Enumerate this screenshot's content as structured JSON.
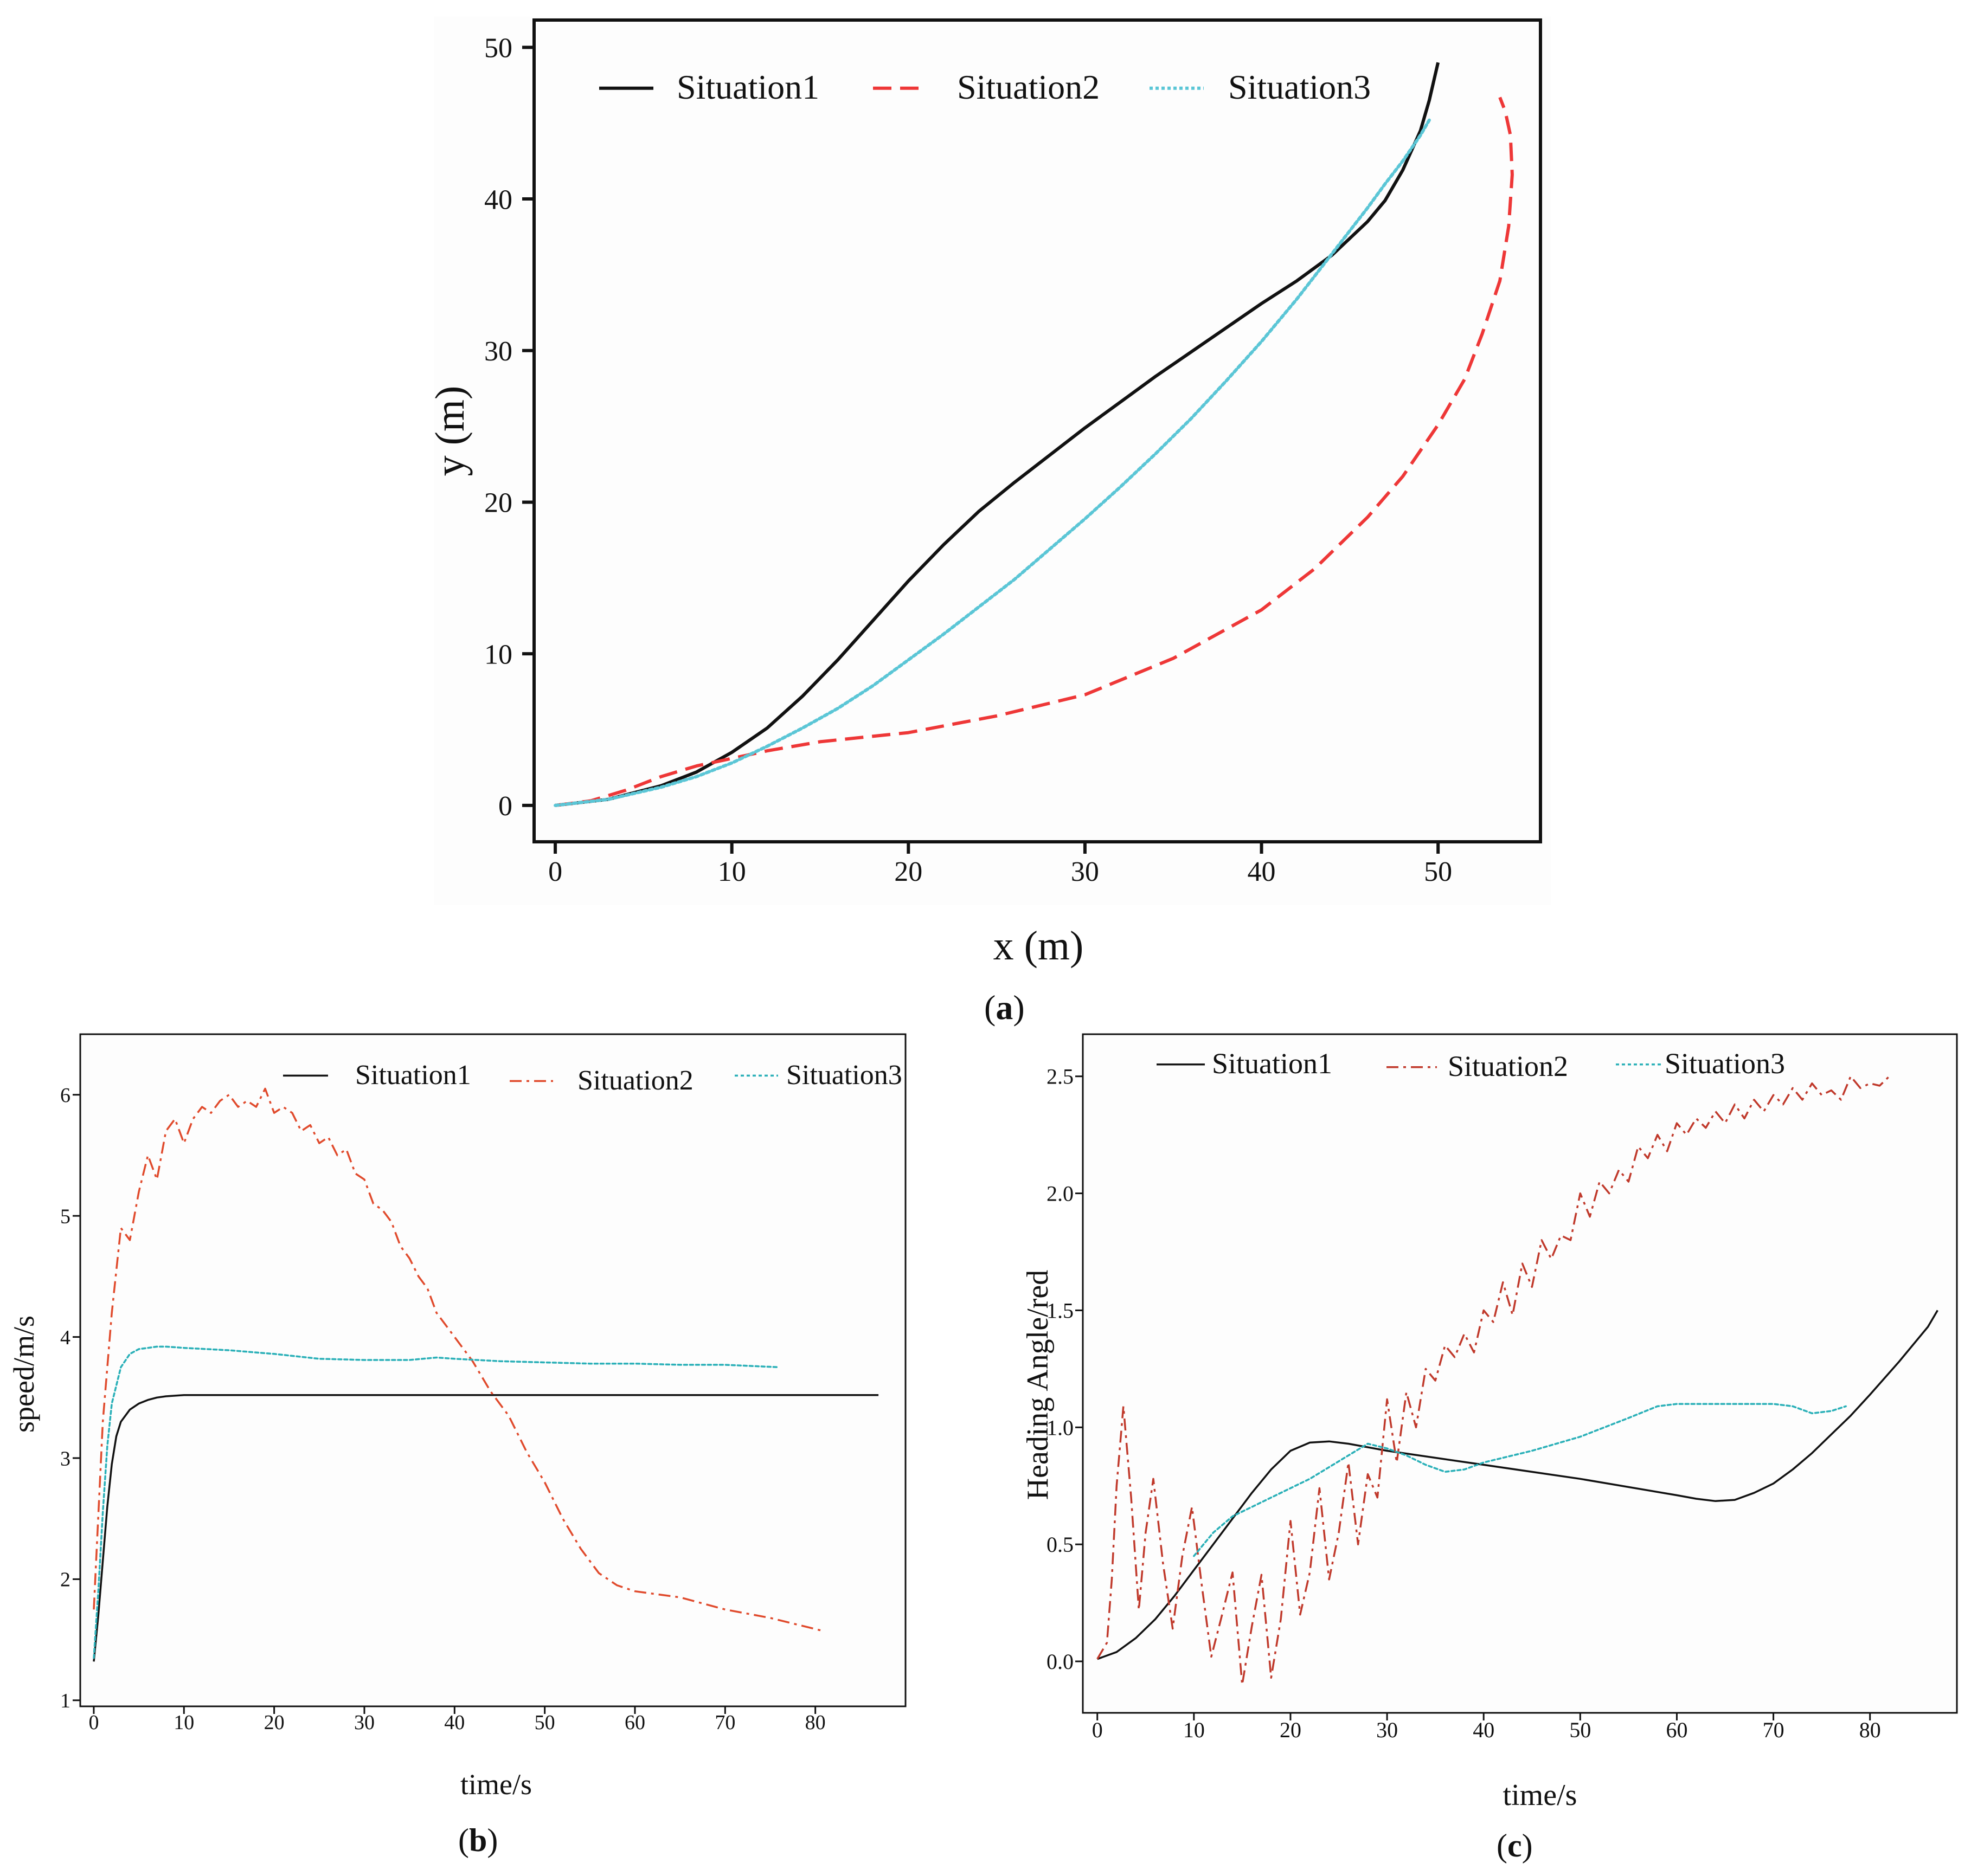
{
  "chart_data": [
    {
      "id": "a",
      "type": "line",
      "panel_label": "(a)",
      "label_letter": "a",
      "xlabel": "x (m)",
      "ylabel": "y (m)",
      "xlim": [
        -1.2,
        55.8
      ],
      "ylim": [
        -2.4,
        51.8
      ],
      "xticks": [
        0,
        10,
        20,
        30,
        40,
        50
      ],
      "yticks": [
        0,
        10,
        20,
        30,
        40,
        50
      ],
      "tick_labels_x": [
        "0",
        "10",
        "20",
        "30",
        "40",
        "50"
      ],
      "tick_labels_y": [
        "0",
        "10",
        "20",
        "30",
        "40",
        "50"
      ],
      "grid": false,
      "legend_position": "top",
      "series": [
        {
          "name": "Situation1",
          "color": "#111111",
          "style": "solid",
          "x": [
            0,
            3,
            6,
            8,
            10,
            12,
            14,
            16,
            18,
            20,
            22,
            24,
            26,
            28,
            30,
            32,
            34,
            36,
            38,
            40,
            42,
            44,
            46,
            47,
            48,
            49,
            49.5,
            50
          ],
          "y": [
            0,
            0.4,
            1.3,
            2.2,
            3.5,
            5.1,
            7.2,
            9.6,
            12.2,
            14.8,
            17.2,
            19.4,
            21.3,
            23.1,
            24.9,
            26.6,
            28.3,
            29.9,
            31.5,
            33.1,
            34.6,
            36.3,
            38.5,
            39.9,
            41.9,
            44.5,
            46.5,
            49.0
          ]
        },
        {
          "name": "Situation2",
          "color": "#ee3737",
          "style": "dashed",
          "x": [
            0,
            2,
            4,
            6,
            8,
            10,
            12,
            15,
            20,
            25,
            30,
            35,
            40,
            43,
            46,
            48,
            50,
            51.5,
            52.5,
            53.5,
            54.0,
            54.2,
            54.1,
            53.8,
            53.5
          ],
          "y": [
            0,
            0.3,
            1.0,
            1.9,
            2.6,
            3.1,
            3.6,
            4.2,
            4.8,
            5.9,
            7.3,
            9.7,
            12.9,
            15.6,
            19.0,
            21.7,
            25.1,
            28.1,
            31.1,
            34.6,
            38.2,
            41.6,
            44.2,
            45.8,
            46.7
          ]
        },
        {
          "name": "Situation3",
          "color": "#5bc6d6",
          "style": "dotted",
          "x": [
            0,
            3,
            6,
            8,
            10,
            12,
            14,
            16,
            18,
            20,
            22,
            24,
            26,
            28,
            30,
            32,
            34,
            36,
            38,
            40,
            42,
            44,
            46,
            47,
            48,
            49,
            49.5
          ],
          "y": [
            0,
            0.4,
            1.2,
            1.9,
            2.8,
            3.9,
            5.1,
            6.4,
            7.9,
            9.6,
            11.3,
            13.1,
            14.9,
            16.9,
            18.9,
            21.0,
            23.2,
            25.5,
            28.0,
            30.6,
            33.4,
            36.4,
            39.4,
            41.0,
            42.5,
            44.2,
            45.2
          ]
        }
      ]
    },
    {
      "id": "b",
      "type": "line",
      "panel_label": "(b)",
      "label_letter": "b",
      "xlabel": "time/s",
      "ylabel": "speed/m/s",
      "xlim": [
        -1.5,
        90
      ],
      "ylim": [
        0.95,
        6.5
      ],
      "xticks": [
        0,
        10,
        20,
        30,
        40,
        50,
        60,
        70,
        80
      ],
      "yticks": [
        1,
        2,
        3,
        4,
        5,
        6
      ],
      "tick_labels_x": [
        "0",
        "10",
        "20",
        "30",
        "40",
        "50",
        "60",
        "70",
        "80"
      ],
      "tick_labels_y": [
        "1",
        "2",
        "3",
        "4",
        "5",
        "6"
      ],
      "grid": false,
      "legend_position": "top-right",
      "series": [
        {
          "name": "Situation1",
          "color": "#111111",
          "style": "solid",
          "x": [
            0,
            0.5,
            1,
            1.5,
            2,
            2.5,
            3,
            4,
            5,
            6,
            7,
            8,
            10,
            15,
            20,
            40,
            60,
            87
          ],
          "y": [
            1.32,
            1.7,
            2.15,
            2.6,
            2.95,
            3.18,
            3.3,
            3.4,
            3.45,
            3.48,
            3.5,
            3.51,
            3.52,
            3.52,
            3.52,
            3.52,
            3.52,
            3.52
          ]
        },
        {
          "name": "Situation2",
          "color": "#e04a2c",
          "style": "dashdot",
          "x": [
            0,
            1,
            2,
            3,
            4,
            5,
            6,
            7,
            8,
            9,
            10,
            11,
            12,
            13,
            14,
            15,
            16,
            17,
            18,
            19,
            20,
            21,
            22,
            23,
            24,
            25,
            26,
            27,
            28,
            29,
            30,
            31,
            32,
            33,
            34,
            35,
            36,
            37,
            38,
            39,
            40,
            42,
            44,
            46,
            48,
            50,
            52,
            54,
            56,
            58,
            60,
            62,
            65,
            70,
            75,
            81
          ],
          "y": [
            1.75,
            3.3,
            4.2,
            4.9,
            4.8,
            5.2,
            5.5,
            5.3,
            5.7,
            5.8,
            5.6,
            5.8,
            5.9,
            5.85,
            5.95,
            6.0,
            5.9,
            5.95,
            5.9,
            6.05,
            5.85,
            5.9,
            5.85,
            5.7,
            5.75,
            5.6,
            5.65,
            5.5,
            5.55,
            5.35,
            5.3,
            5.1,
            5.05,
            4.95,
            4.75,
            4.65,
            4.5,
            4.4,
            4.2,
            4.1,
            4.0,
            3.8,
            3.55,
            3.35,
            3.05,
            2.8,
            2.5,
            2.25,
            2.05,
            1.95,
            1.9,
            1.88,
            1.85,
            1.75,
            1.68,
            1.57
          ]
        },
        {
          "name": "Situation3",
          "color": "#2ab0b8",
          "style": "dotted",
          "x": [
            0,
            0.5,
            1,
            1.5,
            2,
            3,
            4,
            5,
            6,
            7,
            8,
            10,
            15,
            20,
            25,
            30,
            35,
            38,
            40,
            45,
            50,
            55,
            60,
            65,
            70,
            76
          ],
          "y": [
            1.35,
            1.9,
            2.55,
            3.1,
            3.45,
            3.75,
            3.86,
            3.9,
            3.91,
            3.92,
            3.92,
            3.91,
            3.89,
            3.86,
            3.82,
            3.81,
            3.81,
            3.83,
            3.82,
            3.8,
            3.79,
            3.78,
            3.78,
            3.77,
            3.77,
            3.75
          ]
        }
      ]
    },
    {
      "id": "c",
      "type": "line",
      "panel_label": "(c)",
      "label_letter": "c",
      "xlabel": "time/s",
      "ylabel": "Heading Angle/red",
      "xlim": [
        -1.5,
        89
      ],
      "ylim": [
        -0.22,
        2.68
      ],
      "xticks": [
        0,
        10,
        20,
        30,
        40,
        50,
        60,
        70,
        80
      ],
      "yticks": [
        0.0,
        0.5,
        1.0,
        1.5,
        2.0,
        2.5
      ],
      "tick_labels_x": [
        "0",
        "10",
        "20",
        "30",
        "40",
        "50",
        "60",
        "70",
        "80"
      ],
      "tick_labels_y": [
        "0.0",
        "0.5",
        "1.0",
        "1.5",
        "2.0",
        "2.5"
      ],
      "grid": false,
      "legend_position": "top",
      "series": [
        {
          "name": "Situation1",
          "color": "#111111",
          "style": "solid",
          "x": [
            0,
            2,
            4,
            6,
            8,
            10,
            12,
            14,
            16,
            18,
            20,
            22,
            24,
            26,
            30,
            40,
            50,
            60,
            62,
            64,
            66,
            68,
            70,
            72,
            74,
            76,
            78,
            80,
            83,
            86,
            87
          ],
          "y": [
            0.01,
            0.04,
            0.1,
            0.18,
            0.28,
            0.39,
            0.5,
            0.61,
            0.72,
            0.82,
            0.9,
            0.935,
            0.94,
            0.93,
            0.9,
            0.84,
            0.78,
            0.71,
            0.695,
            0.685,
            0.69,
            0.72,
            0.76,
            0.82,
            0.89,
            0.97,
            1.05,
            1.14,
            1.28,
            1.43,
            1.5
          ]
        },
        {
          "name": "Situation2",
          "color": "#c0392b",
          "style": "dashdot",
          "x": [
            0,
            1,
            1.5,
            2,
            2.7,
            3.5,
            4.3,
            5,
            5.8,
            6.8,
            7.8,
            8.8,
            9.8,
            10.8,
            11.8,
            12.8,
            14,
            15,
            16,
            17,
            18,
            19,
            20,
            21,
            22,
            23,
            24,
            25,
            26,
            27,
            28,
            29,
            30,
            31,
            32,
            33,
            34,
            35,
            36,
            37,
            38,
            39,
            40,
            41,
            42,
            43,
            44,
            45,
            46,
            47,
            48,
            49,
            50,
            51,
            52,
            53,
            54,
            55,
            56,
            57,
            58,
            59,
            60,
            61,
            62,
            63,
            64,
            65,
            66,
            67,
            68,
            69,
            70,
            71,
            72,
            73,
            74,
            75,
            76,
            77,
            78,
            79,
            80,
            81,
            82
          ],
          "y": [
            0.01,
            0.08,
            0.35,
            0.75,
            1.09,
            0.7,
            0.22,
            0.55,
            0.78,
            0.42,
            0.14,
            0.45,
            0.66,
            0.33,
            0.02,
            0.18,
            0.38,
            -0.1,
            0.15,
            0.37,
            -0.07,
            0.18,
            0.6,
            0.2,
            0.38,
            0.74,
            0.35,
            0.55,
            0.85,
            0.5,
            0.8,
            0.7,
            1.12,
            0.85,
            1.15,
            1.0,
            1.25,
            1.2,
            1.35,
            1.3,
            1.4,
            1.32,
            1.5,
            1.45,
            1.62,
            1.48,
            1.7,
            1.6,
            1.8,
            1.72,
            1.82,
            1.8,
            2.0,
            1.9,
            2.05,
            2.0,
            2.1,
            2.05,
            2.2,
            2.15,
            2.25,
            2.18,
            2.3,
            2.25,
            2.32,
            2.28,
            2.35,
            2.3,
            2.38,
            2.32,
            2.4,
            2.35,
            2.42,
            2.38,
            2.45,
            2.4,
            2.47,
            2.42,
            2.44,
            2.4,
            2.5,
            2.45,
            2.47,
            2.46,
            2.5
          ]
        },
        {
          "name": "Situation3",
          "color": "#2ab0b8",
          "style": "dotted",
          "x": [
            10,
            12,
            14,
            16,
            18,
            20,
            22,
            24,
            26,
            28,
            30,
            32,
            34,
            36,
            38,
            40,
            45,
            50,
            55,
            58,
            60,
            65,
            70,
            72,
            74,
            76,
            77.5
          ],
          "y": [
            0.45,
            0.55,
            0.62,
            0.66,
            0.7,
            0.74,
            0.78,
            0.83,
            0.88,
            0.93,
            0.91,
            0.88,
            0.84,
            0.81,
            0.82,
            0.85,
            0.9,
            0.96,
            1.04,
            1.09,
            1.1,
            1.1,
            1.1,
            1.09,
            1.06,
            1.07,
            1.09
          ]
        }
      ]
    }
  ],
  "colors": {
    "axis": "#111111",
    "background": "#ffffff"
  }
}
